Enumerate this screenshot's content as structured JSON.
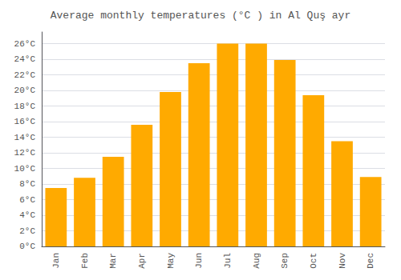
{
  "chart_data": {
    "type": "bar",
    "title": "Average monthly temperatures (°C ) in Al Quş ayr",
    "categories": [
      "Jan",
      "Feb",
      "Mar",
      "Apr",
      "May",
      "Jun",
      "Jul",
      "Aug",
      "Sep",
      "Oct",
      "Nov",
      "Dec"
    ],
    "values": [
      7.5,
      8.8,
      11.5,
      15.6,
      19.8,
      23.5,
      26.0,
      26.0,
      23.9,
      19.4,
      13.5,
      8.9
    ],
    "color": "#FFAA00",
    "ylim": [
      0,
      27.5
    ],
    "yticks": [
      {
        "value": 0,
        "label": "0°C"
      },
      {
        "value": 2,
        "label": "2°C"
      },
      {
        "value": 4,
        "label": "4°C"
      },
      {
        "value": 6,
        "label": "6°C"
      },
      {
        "value": 8,
        "label": "8°C"
      },
      {
        "value": 10,
        "label": "10°C"
      },
      {
        "value": 12,
        "label": "12°C"
      },
      {
        "value": 14,
        "label": "14°C"
      },
      {
        "value": 16,
        "label": "16°C"
      },
      {
        "value": 18,
        "label": "18°C"
      },
      {
        "value": 20,
        "label": "20°C"
      },
      {
        "value": 22,
        "label": "22°C"
      },
      {
        "value": 24,
        "label": "24°C"
      },
      {
        "value": 26,
        "label": "26°C"
      }
    ],
    "grid": true
  }
}
